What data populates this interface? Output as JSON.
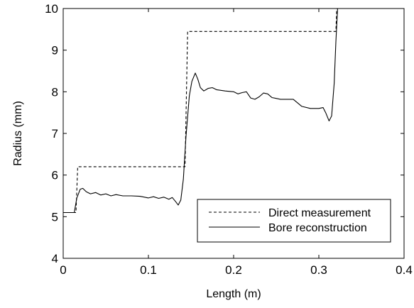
{
  "chart_data": {
    "type": "line",
    "title": "",
    "xlabel": "Length (m)",
    "ylabel": "Radius (mm)",
    "xlim": [
      0,
      0.4
    ],
    "ylim": [
      4,
      10
    ],
    "xticks": [
      0,
      0.1,
      0.2,
      0.3,
      0.4
    ],
    "xtick_labels": [
      "0",
      "0.1",
      "0.2",
      "0.3",
      "0.4"
    ],
    "yticks": [
      4,
      5,
      6,
      7,
      8,
      9,
      10
    ],
    "ytick_labels": [
      "4",
      "5",
      "6",
      "7",
      "8",
      "9",
      "10"
    ],
    "grid": false,
    "legend_position": "bottom-right",
    "series": [
      {
        "name": "Direct measurement",
        "style": "dashed",
        "color": "#000000",
        "x": [
          0,
          0.015,
          0.017,
          0.143,
          0.146,
          0.32,
          0.321
        ],
        "y": [
          5.1,
          5.1,
          6.2,
          6.2,
          9.45,
          9.45,
          10
        ]
      },
      {
        "name": "Bore reconstruction",
        "style": "solid",
        "color": "#000000",
        "x": [
          0,
          0.013,
          0.016,
          0.02,
          0.023,
          0.027,
          0.032,
          0.038,
          0.044,
          0.05,
          0.056,
          0.062,
          0.07,
          0.08,
          0.09,
          0.1,
          0.106,
          0.112,
          0.118,
          0.124,
          0.128,
          0.132,
          0.135,
          0.138,
          0.141,
          0.144,
          0.148,
          0.151,
          0.155,
          0.158,
          0.161,
          0.165,
          0.17,
          0.175,
          0.18,
          0.19,
          0.2,
          0.205,
          0.21,
          0.215,
          0.22,
          0.225,
          0.23,
          0.235,
          0.24,
          0.245,
          0.25,
          0.255,
          0.26,
          0.27,
          0.28,
          0.29,
          0.3,
          0.305,
          0.308,
          0.312,
          0.315,
          0.318,
          0.32,
          0.322
        ],
        "y": [
          5.1,
          5.1,
          5.45,
          5.66,
          5.68,
          5.6,
          5.55,
          5.58,
          5.52,
          5.55,
          5.5,
          5.53,
          5.5,
          5.5,
          5.49,
          5.45,
          5.48,
          5.44,
          5.47,
          5.42,
          5.46,
          5.36,
          5.28,
          5.4,
          5.9,
          6.9,
          7.9,
          8.25,
          8.45,
          8.3,
          8.1,
          8.02,
          8.08,
          8.1,
          8.05,
          8.02,
          8.0,
          7.95,
          7.98,
          8.0,
          7.85,
          7.82,
          7.88,
          7.97,
          7.95,
          7.86,
          7.84,
          7.82,
          7.82,
          7.82,
          7.65,
          7.6,
          7.6,
          7.62,
          7.5,
          7.3,
          7.42,
          8.2,
          9.2,
          10
        ]
      }
    ]
  }
}
